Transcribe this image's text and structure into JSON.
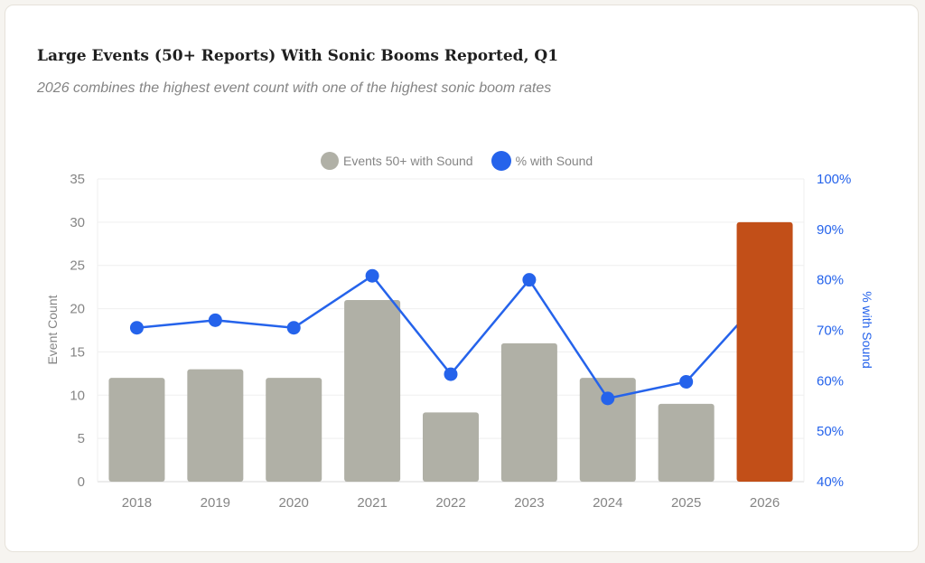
{
  "title": "Large Events (50+ Reports) With Sonic Booms Reported, Q1",
  "subtitle": "2026 combines the highest event count with one of the highest sonic boom rates",
  "colors": {
    "bar": "#b0b0a6",
    "highlight": "#c24f18",
    "line": "#2563eb",
    "text": "#858585"
  },
  "chart_data": {
    "type": "bar",
    "categories": [
      "2018",
      "2019",
      "2020",
      "2021",
      "2022",
      "2023",
      "2024",
      "2025",
      "2026"
    ],
    "series": [
      {
        "name": "Events 50+ with Sound",
        "type": "bar",
        "axis": "left",
        "values": [
          12,
          13,
          12,
          21,
          8,
          16,
          12,
          9,
          30
        ],
        "highlight_index": 8
      },
      {
        "name": "% with Sound",
        "type": "line",
        "axis": "right",
        "values": [
          70.5,
          72,
          70.5,
          80.8,
          61.3,
          80,
          56.5,
          59.8,
          77
        ]
      }
    ],
    "y_left": {
      "label": "Event Count",
      "min": 0,
      "max": 35,
      "ticks": [
        "0",
        "5",
        "10",
        "15",
        "20",
        "25",
        "30",
        "35"
      ]
    },
    "y_right": {
      "label": "% with Sound",
      "min": 40,
      "max": 100,
      "ticks": [
        "40%",
        "50%",
        "60%",
        "70%",
        "80%",
        "90%",
        "100%"
      ]
    },
    "legend": [
      "Events 50+ with Sound",
      "% with Sound"
    ]
  }
}
